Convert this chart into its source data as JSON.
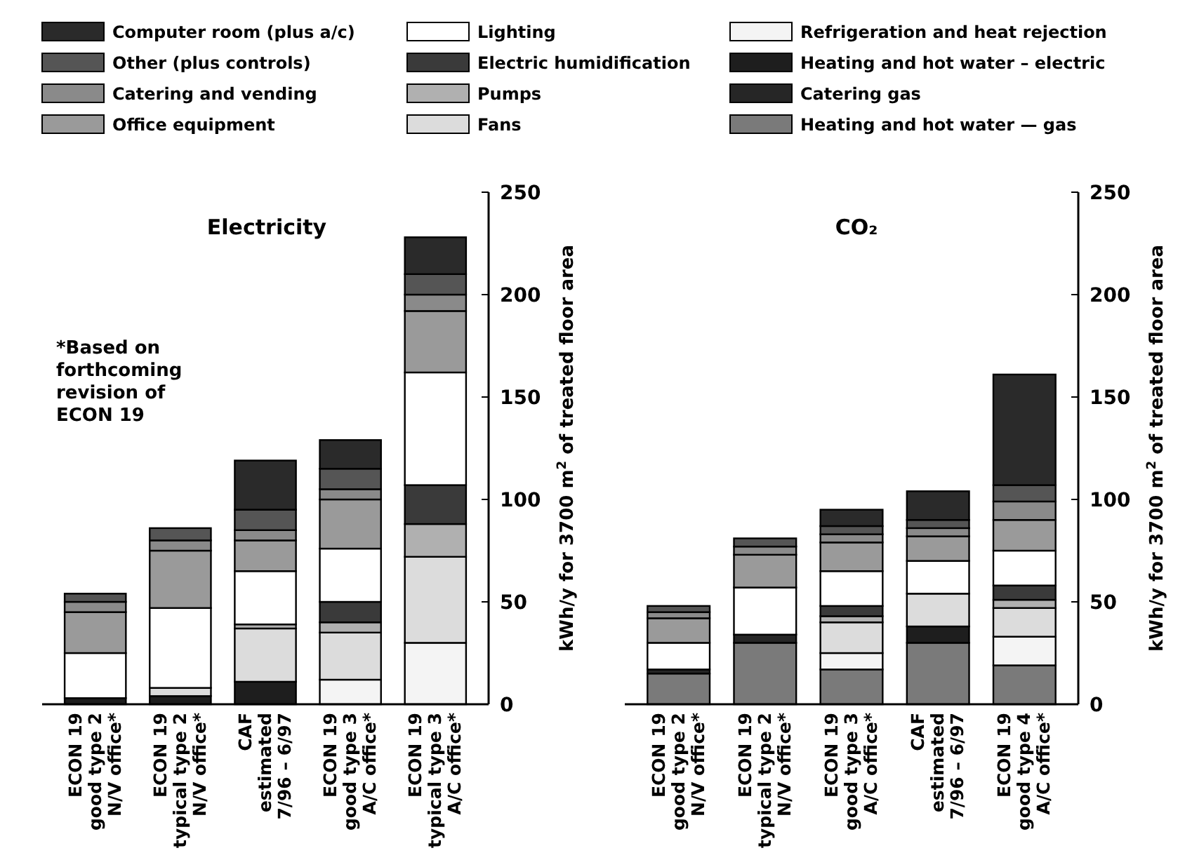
{
  "chart_data": [
    {
      "type": "bar",
      "title": "Electricity",
      "stacked": true,
      "legend": "top",
      "ylabel": "kWh/y for 3700 m$^{2}$ of treated floor area",
      "annotations": [
        "*Based on forthcoming revision of ECON 19"
      ],
      "categories": [
        "ECON 19\ngood type 2\nN/V office*",
        "ECON 19\ntypical type 2\nN/V office*",
        "CAF\nestimated\n7/96 – 6/97",
        "ECON 19\ngood type 3\nA/C office*",
        "ECON 19\ntypical type 3\nA/C office*"
      ],
      "ylim": [
        0,
        250
      ],
      "yticks": [
        0,
        50,
        100,
        150,
        200,
        250
      ],
      "series": [
        {
          "name": "Heating and hot water — gas",
          "color": "#7a7a7a",
          "values": [
            0,
            0,
            0,
            0,
            0
          ]
        },
        {
          "name": "Catering gas",
          "color": "#262626",
          "values": [
            0,
            0,
            0,
            0,
            0
          ]
        },
        {
          "name": "Heating and hot water – electric",
          "color": "#1e1e1e",
          "values": [
            3,
            4,
            11,
            0,
            0
          ]
        },
        {
          "name": "Refrigeration and heat rejection",
          "color": "#f4f4f4",
          "values": [
            0,
            0,
            0,
            12,
            30
          ]
        },
        {
          "name": "Fans",
          "color": "#dcdcdc",
          "values": [
            0,
            4,
            26,
            23,
            42
          ]
        },
        {
          "name": "Pumps",
          "color": "#b0b0b0",
          "values": [
            0,
            0,
            2,
            5,
            16
          ]
        },
        {
          "name": "Electric humidification",
          "color": "#3a3a3a",
          "values": [
            0,
            0,
            0,
            10,
            19
          ]
        },
        {
          "name": "Lighting",
          "color": "#ffffff",
          "values": [
            22,
            39,
            26,
            26,
            55
          ]
        },
        {
          "name": "Office equipment",
          "color": "#9a9a9a",
          "values": [
            20,
            28,
            15,
            24,
            30
          ]
        },
        {
          "name": "Catering and vending",
          "color": "#8a8a8a",
          "values": [
            5,
            5,
            5,
            5,
            8
          ]
        },
        {
          "name": "Other (plus controls)",
          "color": "#555555",
          "values": [
            4,
            6,
            10,
            10,
            10
          ]
        },
        {
          "name": "Computer room (plus a/c)",
          "color": "#2a2a2a",
          "values": [
            0,
            0,
            24,
            14,
            18
          ]
        }
      ]
    },
    {
      "type": "bar",
      "title": "CO₂",
      "stacked": true,
      "ylabel": "kWh/y for 3700 m$^{2}$ of treated floor area",
      "categories": [
        "ECON 19\ngood type 2\nN/V office*",
        "ECON 19\ntypical type 2\nN/V office*",
        "ECON 19\ngood type 3\nA/C office*",
        "CAF\nestimated\n7/96 – 6/97",
        "ECON 19\ngood type 4\nA/C office*"
      ],
      "ylim": [
        0,
        250
      ],
      "yticks": [
        0,
        50,
        100,
        150,
        200,
        250
      ],
      "series": [
        {
          "color": "#7a7a7a",
          "values": [
            15,
            30,
            17,
            30,
            19
          ]
        },
        {
          "color": "#262626",
          "values": [
            2,
            4,
            0,
            0,
            0
          ]
        },
        {
          "color": "#1e1e1e",
          "values": [
            0,
            0,
            0,
            8,
            0
          ]
        },
        {
          "color": "#f4f4f4",
          "values": [
            0,
            0,
            8,
            0,
            14
          ]
        },
        {
          "color": "#dcdcdc",
          "values": [
            0,
            0,
            15,
            16,
            14
          ]
        },
        {
          "color": "#b0b0b0",
          "values": [
            0,
            0,
            3,
            0,
            4
          ]
        },
        {
          "color": "#3a3a3a",
          "values": [
            0,
            0,
            5,
            0,
            7
          ]
        },
        {
          "color": "#ffffff",
          "values": [
            13,
            23,
            17,
            16,
            17
          ]
        },
        {
          "color": "#9a9a9a",
          "values": [
            12,
            16,
            14,
            12,
            15
          ]
        },
        {
          "color": "#8a8a8a",
          "values": [
            3,
            4,
            4,
            4,
            9
          ]
        },
        {
          "color": "#555555",
          "values": [
            3,
            4,
            4,
            4,
            8
          ]
        },
        {
          "color": "#2a2a2a",
          "values": [
            0,
            0,
            8,
            14,
            54
          ]
        }
      ]
    }
  ]
}
